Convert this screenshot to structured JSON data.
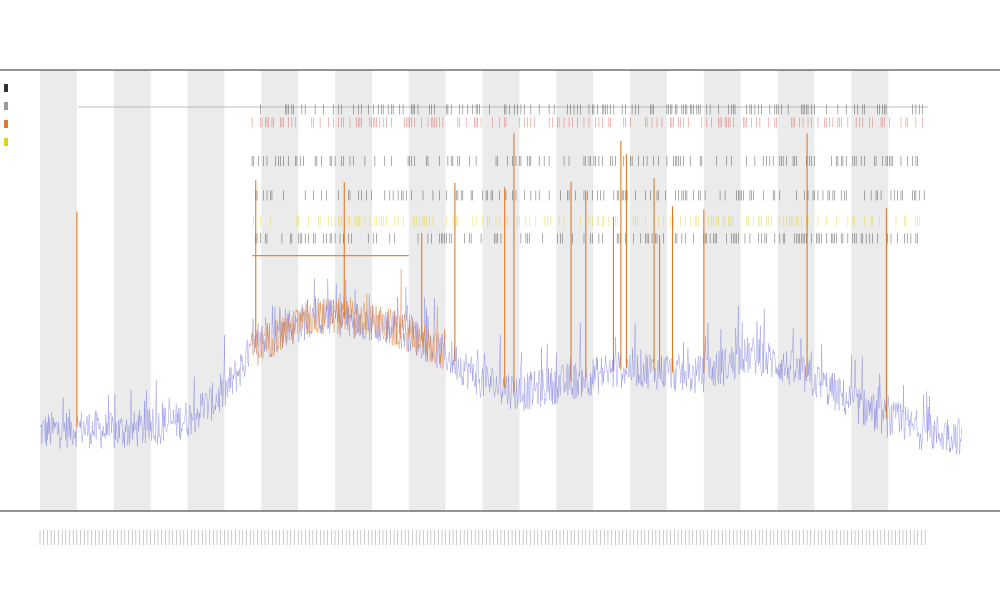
{
  "chart_data": {
    "type": "line",
    "title": "",
    "subtitle_1": "",
    "subtitle_2": "",
    "xlabel": "",
    "ylabel": "",
    "grid": false,
    "legend_position": "top-left",
    "colors": {
      "background_series": "#6f6fe0",
      "highlight_series": "#e07a2a",
      "band": "#ebebeb",
      "ref_line": "#e8853c",
      "marker_red": "#d9534f",
      "marker_yellow": "#e6cf1a",
      "marker_black": "#333333"
    },
    "x": {
      "min": 0,
      "max": 500
    },
    "y": {
      "min": 0,
      "max": 100
    },
    "series": [
      {
        "role": "background",
        "color": "#6f6fe0",
        "profile": [
          [
            0,
            17
          ],
          [
            20,
            18
          ],
          [
            40,
            17
          ],
          [
            60,
            18
          ],
          [
            80,
            20
          ],
          [
            100,
            26
          ],
          [
            115,
            36
          ],
          [
            130,
            40
          ],
          [
            150,
            44
          ],
          [
            175,
            43
          ],
          [
            200,
            40
          ],
          [
            220,
            35
          ],
          [
            240,
            29
          ],
          [
            260,
            26
          ],
          [
            280,
            28
          ],
          [
            300,
            30
          ],
          [
            320,
            32
          ],
          [
            340,
            31
          ],
          [
            355,
            30
          ],
          [
            370,
            32
          ],
          [
            385,
            35
          ],
          [
            400,
            33
          ],
          [
            420,
            29
          ],
          [
            440,
            24
          ],
          [
            460,
            20
          ],
          [
            480,
            17
          ],
          [
            500,
            16
          ]
        ]
      },
      {
        "role": "highlight",
        "color": "#e07a2a",
        "profile": [
          [
            115,
            36
          ],
          [
            130,
            40
          ],
          [
            150,
            44
          ],
          [
            175,
            43
          ],
          [
            200,
            40
          ],
          [
            220,
            35
          ]
        ]
      }
    ],
    "bands": [
      [
        0,
        20
      ],
      [
        40,
        60
      ],
      [
        80,
        100
      ],
      [
        120,
        140
      ],
      [
        160,
        180
      ],
      [
        200,
        220
      ],
      [
        240,
        260
      ],
      [
        280,
        300
      ],
      [
        320,
        340
      ],
      [
        360,
        380
      ],
      [
        400,
        420
      ],
      [
        440,
        460
      ]
    ],
    "spikes": [
      20,
      117,
      165,
      207,
      225,
      252,
      257,
      288,
      296,
      311,
      315,
      318,
      333,
      336,
      343,
      360,
      416,
      459
    ],
    "ref_line": {
      "x_start": 115,
      "x_end": 200,
      "y": 58
    },
    "marker_tracks": [
      {
        "name": "track-1",
        "color": "#333333",
        "y": 92
      },
      {
        "name": "track-2",
        "color": "#d9534f",
        "y": 89
      },
      {
        "name": "track-3",
        "color": "#333333",
        "y": 80
      },
      {
        "name": "track-4",
        "color": "#333333",
        "y": 72
      },
      {
        "name": "track-5",
        "color": "#e6cf1a",
        "y": 66
      },
      {
        "name": "track-6",
        "color": "#333333",
        "y": 62
      }
    ],
    "legend": [
      {
        "color": "#333333"
      },
      {
        "color": "#9a9a9a"
      },
      {
        "color": "#e07a2a"
      },
      {
        "color": "#e6cf1a"
      }
    ]
  }
}
